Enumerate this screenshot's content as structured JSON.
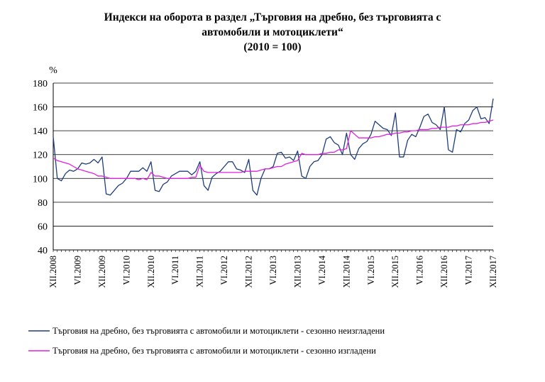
{
  "title": {
    "line1": "Индекси на оборота в раздел „Търговия на дребно, без търговията с",
    "line2": "автомобили и мотоциклети“",
    "line3": "(2010 = 100)"
  },
  "chart_data": {
    "type": "line",
    "ylabel": "%",
    "ylim": [
      40,
      180
    ],
    "yticks": [
      40,
      60,
      80,
      100,
      120,
      140,
      160,
      180
    ],
    "x_start": "XII.2008",
    "n_points": 109,
    "xtick_labels": [
      "XII.2008",
      "VI.2009",
      "XII.2009",
      "VI.2010",
      "XII.2010",
      "VI.2011",
      "XII.2011",
      "VI.2012",
      "XII.2012",
      "VI.2013",
      "XII.2013",
      "VI.2014",
      "XII.2014",
      "VI.2015",
      "XII.2015",
      "VI.2016",
      "XII.2016",
      "VI.2017",
      "XII.2017"
    ],
    "grid": true,
    "legend_position": "bottom",
    "series": [
      {
        "name": "Търговия на дребно, без търговията с автомобили  и мотоциклети  - сезонно неизгладени",
        "color": "#1f3d7a",
        "values": [
          135,
          100,
          98,
          104,
          107,
          106,
          108,
          113,
          112,
          113,
          116,
          113,
          118,
          87,
          86,
          90,
          94,
          96,
          100,
          106,
          106,
          106,
          109,
          106,
          114,
          90,
          89,
          95,
          97,
          102,
          104,
          106,
          106,
          106,
          103,
          106,
          114,
          94,
          90,
          101,
          104,
          106,
          110,
          114,
          114,
          108,
          107,
          105,
          116,
          90,
          86,
          100,
          108,
          108,
          110,
          121,
          122,
          117,
          118,
          115,
          123,
          102,
          100,
          110,
          114,
          115,
          120,
          133,
          135,
          130,
          128,
          120,
          138,
          120,
          116,
          125,
          129,
          131,
          137,
          148,
          145,
          142,
          141,
          136,
          155,
          118,
          118,
          132,
          137,
          135,
          143,
          152,
          154,
          147,
          145,
          141,
          160,
          124,
          122,
          141,
          139,
          146,
          149,
          157,
          160,
          150,
          151,
          146,
          167
        ]
      },
      {
        "name": "Търговия на дребно, без търговията с автомобили  и мотоциклети  - сезонно изгладени",
        "color": "#e020e0",
        "values": [
          117,
          115,
          114,
          113,
          112,
          110,
          108,
          107,
          106,
          105,
          104,
          102,
          102,
          101,
          100,
          100,
          100,
          100,
          100,
          100,
          100,
          99,
          100,
          99,
          105,
          102,
          102,
          101,
          100,
          100,
          100,
          100,
          100,
          100,
          101,
          101,
          111,
          106,
          105,
          105,
          105,
          105,
          105,
          105,
          105,
          105,
          105,
          106,
          106,
          106,
          106,
          107,
          108,
          108,
          109,
          110,
          110,
          112,
          113,
          114,
          115,
          121,
          120,
          120,
          120,
          120,
          121,
          121,
          122,
          122,
          124,
          124,
          125,
          140,
          137,
          134,
          134,
          134,
          134,
          135,
          135,
          136,
          137,
          137,
          138,
          138,
          139,
          139,
          140,
          140,
          141,
          141,
          141,
          142,
          142,
          143,
          143,
          143,
          144,
          144,
          145,
          145,
          145,
          146,
          146,
          147,
          147,
          148,
          149
        ]
      }
    ]
  }
}
